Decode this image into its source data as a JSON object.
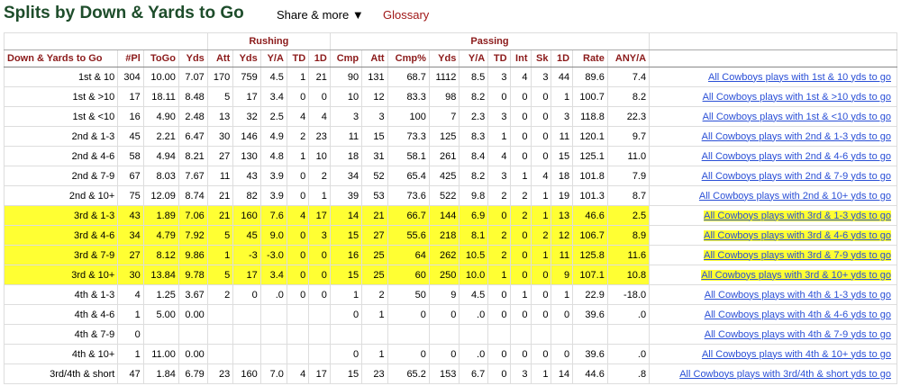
{
  "page": {
    "title": "Splits by Down & Yards to Go",
    "share_label": "Share & more ▼",
    "glossary_label": "Glossary"
  },
  "groups": {
    "rushing": "Rushing",
    "passing": "Passing"
  },
  "columns": [
    "Down & Yards to Go",
    "#Pl",
    "ToGo",
    "Yds",
    "Att",
    "Yds",
    "Y/A",
    "TD",
    "1D",
    "Cmp",
    "Att",
    "Cmp%",
    "Yds",
    "Y/A",
    "TD",
    "Int",
    "Sk",
    "1D",
    "Rate",
    "ANY/A"
  ],
  "rows": [
    {
      "label": "1st & 10",
      "highlight": false,
      "cells": [
        "304",
        "10.00",
        "7.07",
        "170",
        "759",
        "4.5",
        "1",
        "21",
        "90",
        "131",
        "68.7",
        "1112",
        "8.5",
        "3",
        "4",
        "3",
        "44",
        "89.6",
        "7.4"
      ],
      "link": "All Cowboys plays with 1st & 10 yds to go"
    },
    {
      "label": "1st & >10",
      "highlight": false,
      "cells": [
        "17",
        "18.11",
        "8.48",
        "5",
        "17",
        "3.4",
        "0",
        "0",
        "10",
        "12",
        "83.3",
        "98",
        "8.2",
        "0",
        "0",
        "0",
        "1",
        "100.7",
        "8.2"
      ],
      "link": "All Cowboys plays with 1st & >10 yds to go"
    },
    {
      "label": "1st & <10",
      "highlight": false,
      "cells": [
        "16",
        "4.90",
        "2.48",
        "13",
        "32",
        "2.5",
        "4",
        "4",
        "3",
        "3",
        "100",
        "7",
        "2.3",
        "3",
        "0",
        "0",
        "3",
        "118.8",
        "22.3"
      ],
      "link": "All Cowboys plays with 1st & <10 yds to go"
    },
    {
      "label": "2nd & 1-3",
      "highlight": false,
      "cells": [
        "45",
        "2.21",
        "6.47",
        "30",
        "146",
        "4.9",
        "2",
        "23",
        "11",
        "15",
        "73.3",
        "125",
        "8.3",
        "1",
        "0",
        "0",
        "11",
        "120.1",
        "9.7"
      ],
      "link": "All Cowboys plays with 2nd & 1-3 yds to go"
    },
    {
      "label": "2nd & 4-6",
      "highlight": false,
      "cells": [
        "58",
        "4.94",
        "8.21",
        "27",
        "130",
        "4.8",
        "1",
        "10",
        "18",
        "31",
        "58.1",
        "261",
        "8.4",
        "4",
        "0",
        "0",
        "15",
        "125.1",
        "11.0"
      ],
      "link": "All Cowboys plays with 2nd & 4-6 yds to go"
    },
    {
      "label": "2nd & 7-9",
      "highlight": false,
      "cells": [
        "67",
        "8.03",
        "7.67",
        "11",
        "43",
        "3.9",
        "0",
        "2",
        "34",
        "52",
        "65.4",
        "425",
        "8.2",
        "3",
        "1",
        "4",
        "18",
        "101.8",
        "7.9"
      ],
      "link": "All Cowboys plays with 2nd & 7-9 yds to go"
    },
    {
      "label": "2nd & 10+",
      "highlight": false,
      "cells": [
        "75",
        "12.09",
        "8.74",
        "21",
        "82",
        "3.9",
        "0",
        "1",
        "39",
        "53",
        "73.6",
        "522",
        "9.8",
        "2",
        "2",
        "1",
        "19",
        "101.3",
        "8.7"
      ],
      "link": "All Cowboys plays with 2nd & 10+ yds to go"
    },
    {
      "label": "3rd & 1-3",
      "highlight": true,
      "cells": [
        "43",
        "1.89",
        "7.06",
        "21",
        "160",
        "7.6",
        "4",
        "17",
        "14",
        "21",
        "66.7",
        "144",
        "6.9",
        "0",
        "2",
        "1",
        "13",
        "46.6",
        "2.5"
      ],
      "link": "All Cowboys plays with 3rd & 1-3 yds to go"
    },
    {
      "label": "3rd & 4-6",
      "highlight": true,
      "cells": [
        "34",
        "4.79",
        "7.92",
        "5",
        "45",
        "9.0",
        "0",
        "3",
        "15",
        "27",
        "55.6",
        "218",
        "8.1",
        "2",
        "0",
        "2",
        "12",
        "106.7",
        "8.9"
      ],
      "link": "All Cowboys plays with 3rd & 4-6 yds to go"
    },
    {
      "label": "3rd & 7-9",
      "highlight": true,
      "cells": [
        "27",
        "8.12",
        "9.86",
        "1",
        "-3",
        "-3.0",
        "0",
        "0",
        "16",
        "25",
        "64",
        "262",
        "10.5",
        "2",
        "0",
        "1",
        "11",
        "125.8",
        "11.6"
      ],
      "link": "All Cowboys plays with 3rd & 7-9 yds to go"
    },
    {
      "label": "3rd & 10+",
      "highlight": true,
      "cells": [
        "30",
        "13.84",
        "9.78",
        "5",
        "17",
        "3.4",
        "0",
        "0",
        "15",
        "25",
        "60",
        "250",
        "10.0",
        "1",
        "0",
        "0",
        "9",
        "107.1",
        "10.8"
      ],
      "link": "All Cowboys plays with 3rd & 10+ yds to go"
    },
    {
      "label": "4th & 1-3",
      "highlight": false,
      "cells": [
        "4",
        "1.25",
        "3.67",
        "2",
        "0",
        ".0",
        "0",
        "0",
        "1",
        "2",
        "50",
        "9",
        "4.5",
        "0",
        "1",
        "0",
        "1",
        "22.9",
        "-18.0"
      ],
      "link": "All Cowboys plays with 4th & 1-3 yds to go"
    },
    {
      "label": "4th & 4-6",
      "highlight": false,
      "cells": [
        "1",
        "5.00",
        "0.00",
        "",
        "",
        "",
        "",
        "",
        "0",
        "1",
        "0",
        "0",
        ".0",
        "0",
        "0",
        "0",
        "0",
        "39.6",
        ".0"
      ],
      "link": "All Cowboys plays with 4th & 4-6 yds to go"
    },
    {
      "label": "4th & 7-9",
      "highlight": false,
      "cells": [
        "0",
        "",
        "",
        "",
        "",
        "",
        "",
        "",
        "",
        "",
        "",
        "",
        "",
        "",
        "",
        "",
        "",
        "",
        ""
      ],
      "link": "All Cowboys plays with 4th & 7-9 yds to go"
    },
    {
      "label": "4th & 10+",
      "highlight": false,
      "cells": [
        "1",
        "11.00",
        "0.00",
        "",
        "",
        "",
        "",
        "",
        "0",
        "1",
        "0",
        "0",
        ".0",
        "0",
        "0",
        "0",
        "0",
        "39.6",
        ".0"
      ],
      "link": "All Cowboys plays with 4th & 10+ yds to go"
    },
    {
      "label": "3rd/4th & short",
      "highlight": false,
      "cells": [
        "47",
        "1.84",
        "6.79",
        "23",
        "160",
        "7.0",
        "4",
        "17",
        "15",
        "23",
        "65.2",
        "153",
        "6.7",
        "0",
        "3",
        "1",
        "14",
        "44.6",
        ".8"
      ],
      "link": "All Cowboys plays with 3rd/4th & short yds to go"
    }
  ],
  "colors": {
    "title": "#1e4d2b",
    "header_text": "#8b1a1a",
    "highlight": "#ffff33",
    "link": "#2a4fd6",
    "glossary": "#a01818"
  }
}
